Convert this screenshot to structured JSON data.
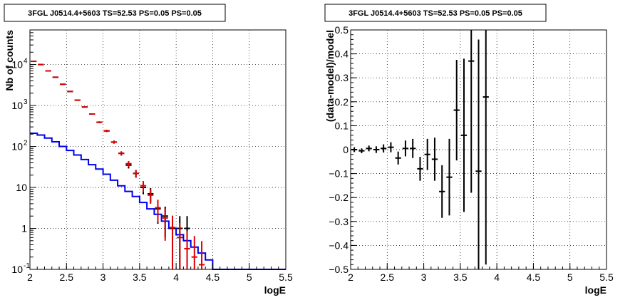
{
  "chart_data": [
    {
      "type": "scatter",
      "title": "3FGL J0514.4+5603 TS=52.53 PS=0.05 PS=0.05",
      "xlabel": "logE",
      "ylabel": "Nb of counts",
      "xlim": [
        2,
        5.5
      ],
      "ylim": [
        0.1,
        70000
      ],
      "yscale": "log",
      "grid": true,
      "x_ticks": [
        "2",
        "2.5",
        "3",
        "3.5",
        "4",
        "4.5",
        "5",
        "5.5"
      ],
      "y_ticks": [
        {
          "value": 0.1,
          "label": "10",
          "exp": "-1"
        },
        {
          "value": 1,
          "label": "1",
          "exp": ""
        },
        {
          "value": 10,
          "label": "10",
          "exp": ""
        },
        {
          "value": 100,
          "label": "10",
          "exp": "2"
        },
        {
          "value": 1000,
          "label": "10",
          "exp": "3"
        },
        {
          "value": 10000,
          "label": "10",
          "exp": "4"
        }
      ],
      "series": [
        {
          "color": "#0000ee",
          "style": "step",
          "bin_width": 0.1,
          "x": [
            2.0,
            2.1,
            2.2,
            2.3,
            2.4,
            2.5,
            2.6,
            2.7,
            2.8,
            2.9,
            3.0,
            3.1,
            3.2,
            3.3,
            3.4,
            3.5,
            3.6,
            3.7,
            3.8,
            3.9,
            4.0,
            4.1,
            4.2,
            4.3,
            4.4,
            4.5,
            4.6,
            4.7,
            4.8,
            4.9,
            5.0,
            5.1,
            5.2,
            5.3,
            5.4
          ],
          "values": [
            210,
            190,
            160,
            130,
            100,
            80,
            62,
            48,
            36,
            28,
            21,
            15,
            11,
            8.0,
            6.0,
            4.3,
            3.0,
            2.2,
            1.5,
            1.0,
            0.7,
            0.5,
            0.35,
            0.25,
            0.17,
            0.1,
            0.1,
            0.1,
            0.1,
            0.1,
            0.1,
            0.1,
            0.1,
            0.1,
            0.1
          ]
        },
        {
          "color": "#000000",
          "style": "errorbar",
          "x": [
            2.05,
            2.15,
            2.25,
            2.35,
            2.45,
            2.55,
            2.65,
            2.75,
            2.85,
            2.95,
            3.05,
            3.15,
            3.25,
            3.35,
            3.45,
            3.55,
            3.65,
            3.75,
            3.85,
            3.95,
            4.05,
            4.15
          ],
          "values": [
            12000,
            10000,
            7000,
            4900,
            3300,
            2200,
            1350,
            920,
            620,
            390,
            240,
            128,
            68,
            35,
            22,
            10,
            7,
            3,
            2,
            1,
            1,
            1
          ],
          "errors": [
            110,
            100,
            84,
            70,
            57,
            47,
            37,
            30,
            25,
            20,
            15,
            11,
            8,
            6,
            4.7,
            3.2,
            2.6,
            1.7,
            1.4,
            1,
            1,
            1
          ]
        },
        {
          "color": "#dd0000",
          "style": "errorbar",
          "x": [
            2.05,
            2.15,
            2.25,
            2.35,
            2.45,
            2.55,
            2.65,
            2.75,
            2.85,
            2.95,
            3.05,
            3.15,
            3.25,
            3.35,
            3.45,
            3.55,
            3.65,
            3.75,
            3.85,
            3.95,
            4.05,
            4.15,
            4.25,
            4.35
          ],
          "values": [
            12000,
            10000,
            7000,
            4900,
            3300,
            2200,
            1350,
            920,
            620,
            390,
            240,
            128,
            68,
            38,
            22,
            11,
            6.5,
            3.2,
            1.8,
            1.05,
            0.6,
            0.32,
            0.2,
            0.13
          ],
          "errors": [
            110,
            100,
            84,
            70,
            57,
            47,
            37,
            30,
            25,
            20,
            15,
            11,
            8,
            6.2,
            4.7,
            3.3,
            2.5,
            1.8,
            1.3,
            1.0,
            0.75,
            0.55,
            0.45,
            0.36
          ]
        }
      ]
    },
    {
      "type": "scatter",
      "title": "3FGL J0514.4+5603 TS=52.53 PS=0.05 PS=0.05",
      "xlabel": "logE",
      "ylabel": "(data-model)/model",
      "xlim": [
        2,
        5.5
      ],
      "ylim": [
        -0.5,
        0.5
      ],
      "grid": true,
      "x_ticks": [
        "2",
        "2.5",
        "3",
        "3.5",
        "4",
        "4.5",
        "5",
        "5.5"
      ],
      "y_ticks": [
        "−0.5",
        "−0.4",
        "−0.3",
        "−0.2",
        "−0.1",
        "0",
        "0.1",
        "0.2",
        "0.3",
        "0.4",
        "0.5"
      ],
      "series": [
        {
          "color": "#000000",
          "style": "errorbar",
          "x": [
            2.05,
            2.15,
            2.25,
            2.35,
            2.45,
            2.55,
            2.65,
            2.75,
            2.85,
            2.95,
            3.05,
            3.15,
            3.25,
            3.35,
            3.45,
            3.55,
            3.65,
            3.75,
            3.85
          ],
          "values": [
            0.0,
            -0.005,
            0.005,
            0.0,
            0.005,
            0.01,
            -0.035,
            0.005,
            0.005,
            -0.08,
            -0.02,
            -0.04,
            -0.175,
            -0.115,
            0.165,
            0.06,
            0.37,
            -0.09,
            0.22
          ],
          "errors": [
            0.01,
            0.01,
            0.012,
            0.014,
            0.017,
            0.021,
            0.027,
            0.033,
            0.04,
            0.05,
            0.065,
            0.09,
            0.11,
            0.16,
            0.21,
            0.32,
            0.55,
            0.55,
            0.7
          ]
        }
      ]
    }
  ]
}
